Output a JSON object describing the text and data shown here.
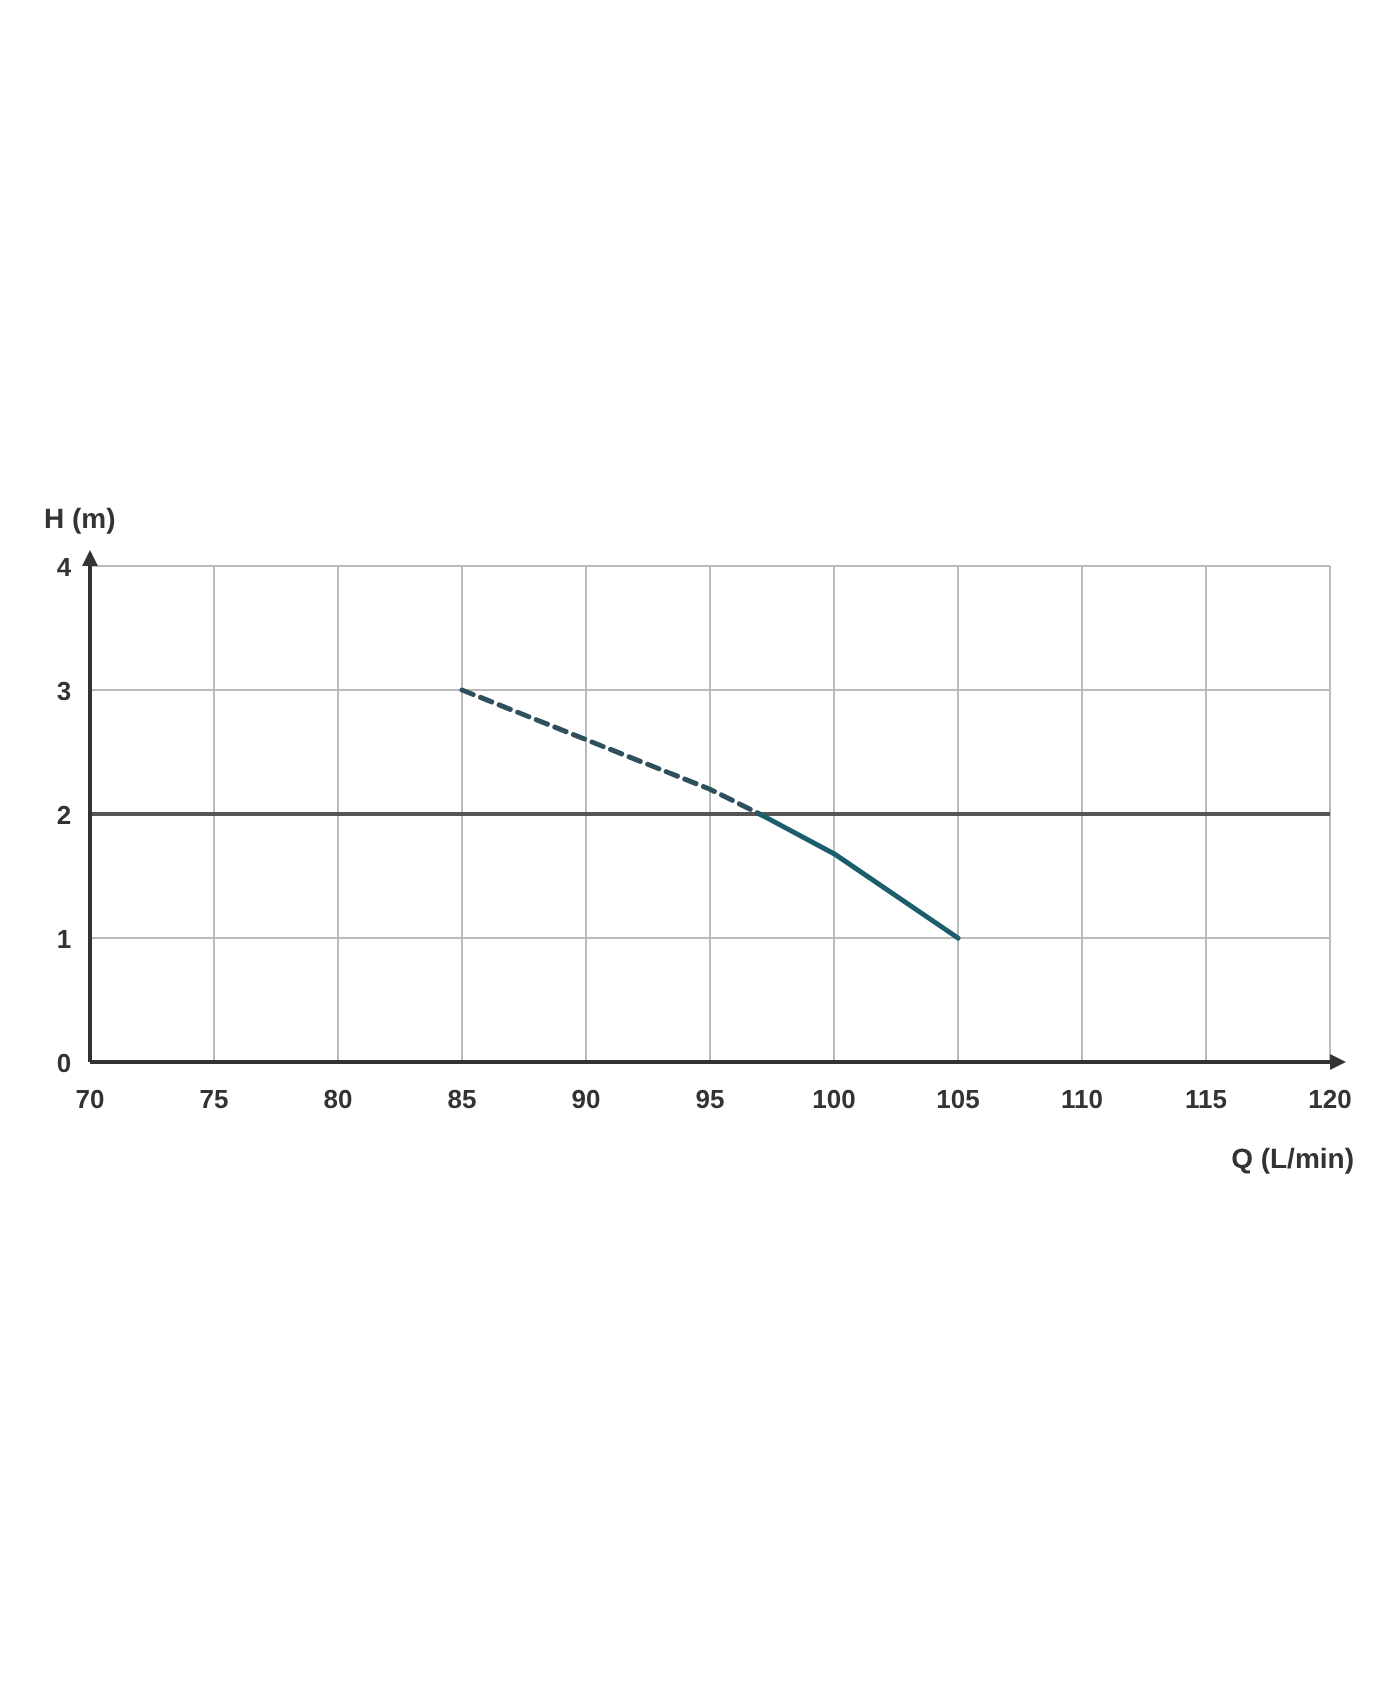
{
  "chart_data": {
    "type": "line",
    "xlabel": "Q (L/min)",
    "ylabel": "H (m)",
    "xlim": [
      70,
      120
    ],
    "xticks": [
      70,
      75,
      80,
      85,
      90,
      95,
      100,
      105,
      110,
      115,
      120
    ],
    "ylim": [
      0,
      4
    ],
    "yticks": [
      0,
      1,
      2,
      3,
      4
    ],
    "grid": true,
    "marker": "none",
    "series": [
      {
        "color": "#2e4f5c",
        "line_style": "dashed",
        "x": [
          85,
          90,
          95,
          97
        ],
        "values": [
          3,
          2.6,
          2.2,
          2.0
        ]
      },
      {
        "color": "#1b5d6b",
        "line_style": "solid",
        "x": [
          97,
          100,
          105
        ],
        "values": [
          2.0,
          1.68,
          1.0
        ]
      }
    ],
    "ref_lines": [
      {
        "axis": "y",
        "value": 2,
        "color": "#555555"
      }
    ]
  }
}
